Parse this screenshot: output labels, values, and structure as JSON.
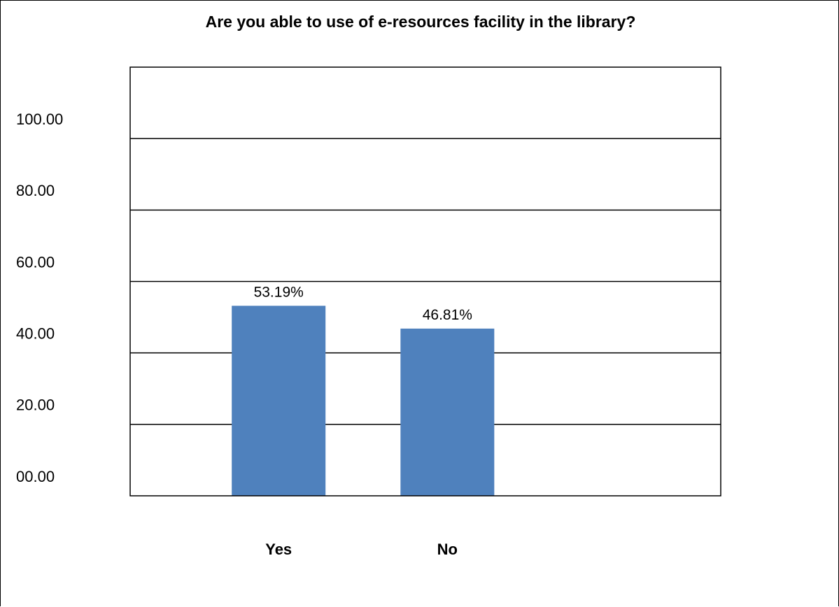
{
  "chart_data": {
    "type": "bar",
    "title": "Are you able to use of e-resources facility in the library?",
    "xlabel": "",
    "ylabel": "",
    "categories": [
      "Yes",
      "No"
    ],
    "values": [
      53.19,
      46.81
    ],
    "data_labels": [
      "53.19%",
      "46.81%"
    ],
    "y_tick_values": [
      0,
      20,
      40,
      60,
      80,
      100
    ],
    "y_tick_labels": [
      "00.00",
      "20.00",
      "40.00",
      "60.00",
      "80.00",
      "100.00"
    ],
    "ylim": [
      0,
      120
    ],
    "grid": true,
    "legend": "none",
    "bar_color": "#4f81bd",
    "grid_color": "#000000"
  }
}
